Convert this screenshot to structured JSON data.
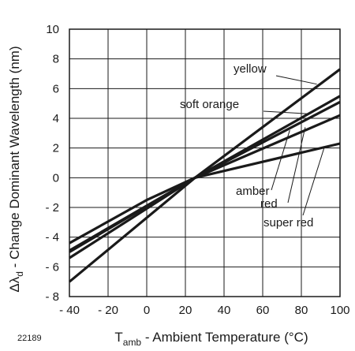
{
  "chart_data": {
    "type": "line",
    "title": "",
    "xlabel": {
      "main": "T",
      "sub": "amb",
      "rest": " - Ambient Temperature (°C)"
    },
    "ylabel": {
      "prefix": "Δλ",
      "sub": "d",
      "rest": " - Change Dominant Wavelength (nm)"
    },
    "xlim": [
      -40,
      100
    ],
    "ylim": [
      -8,
      10
    ],
    "x_ticks": [
      -40,
      -20,
      0,
      20,
      40,
      60,
      80,
      100
    ],
    "x_tick_labels": [
      "- 40",
      "- 20",
      "0",
      "20",
      "40",
      "60",
      "80",
      "100"
    ],
    "y_ticks": [
      -8,
      -6,
      -4,
      -2,
      0,
      2,
      4,
      6,
      8,
      10
    ],
    "y_tick_labels": [
      "- 8",
      "- 6",
      "- 4",
      "- 2",
      "0",
      "2",
      "4",
      "6",
      "8",
      "10"
    ],
    "grid": true,
    "figure_number": "22189",
    "series": [
      {
        "name": "yellow",
        "x": [
          -40,
          25,
          100
        ],
        "y": [
          -7.0,
          0,
          7.3
        ]
      },
      {
        "name": "soft orange",
        "x": [
          -40,
          25,
          100
        ],
        "y": [
          -5.4,
          0,
          5.5
        ]
      },
      {
        "name": "amber",
        "x": [
          -40,
          25,
          100
        ],
        "y": [
          -5.0,
          0,
          5.1
        ]
      },
      {
        "name": "red",
        "x": [
          -40,
          25,
          100
        ],
        "y": [
          -4.9,
          0,
          4.2
        ]
      },
      {
        "name": "super red",
        "x": [
          -40,
          0,
          25,
          100
        ],
        "y": [
          -4.4,
          -1.5,
          0,
          2.3
        ]
      }
    ]
  }
}
